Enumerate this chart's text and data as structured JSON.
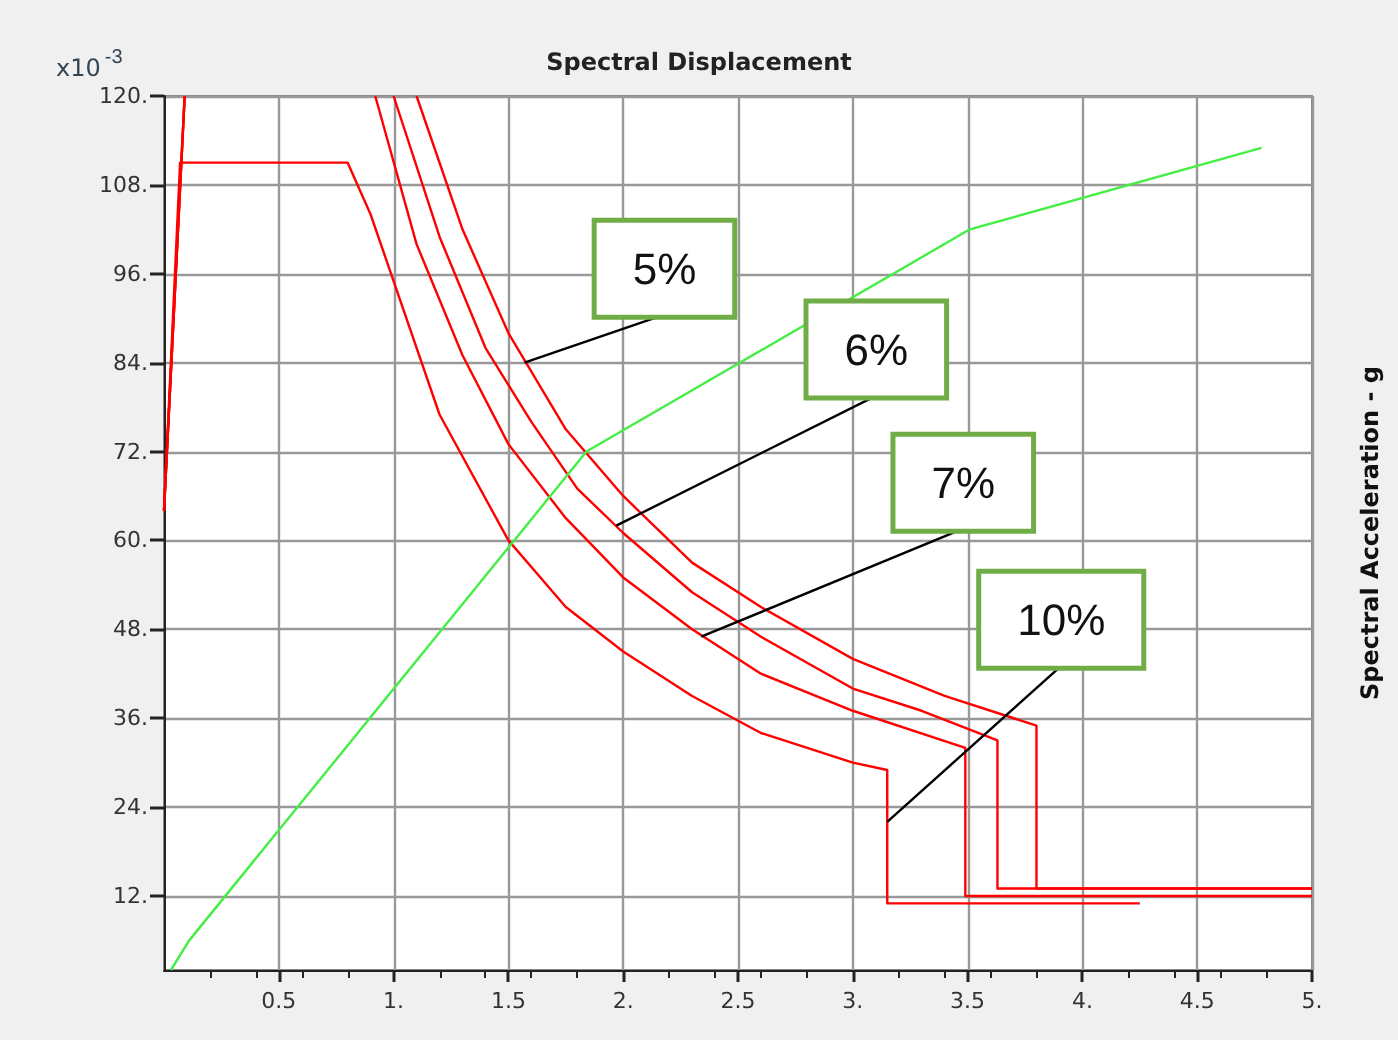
{
  "chart_data": {
    "type": "line",
    "title": "Spectral Displacement",
    "ylabel": "Spectral Acceleration - g",
    "xlim": [
      0,
      5
    ],
    "xticks": [
      0.5,
      {
        "value": 1,
        "label": "1."
      },
      1.5,
      {
        "value": 2,
        "label": "2."
      },
      2.5,
      {
        "value": 3,
        "label": "3."
      },
      3.5,
      {
        "value": 4,
        "label": "4."
      },
      4.5,
      {
        "value": 5,
        "label": "5."
      }
    ],
    "ylim": [
      2,
      120
    ],
    "yticks": [
      {
        "value": 12,
        "label": "12."
      },
      {
        "value": 24,
        "label": "24."
      },
      {
        "value": 36,
        "label": "36."
      },
      {
        "value": 48,
        "label": "48."
      },
      {
        "value": 60,
        "label": "60."
      },
      {
        "value": 72,
        "label": "72."
      },
      {
        "value": 84,
        "label": "84."
      },
      {
        "value": 96,
        "label": "96."
      },
      {
        "value": 108,
        "label": "108."
      },
      {
        "value": 120,
        "label": "120."
      }
    ],
    "grid": true,
    "marker": "none",
    "line_style": "solid",
    "series": [
      {
        "color": "#ff0000",
        "x": [
          0,
          0.09,
          null,
          1.1,
          1.3,
          1.5,
          1.75,
          2.0,
          2.3,
          2.6,
          3.0,
          3.4,
          3.8,
          3.8,
          5.0
        ],
        "values": [
          64,
          120,
          null,
          120,
          102,
          88,
          75,
          66,
          57,
          51,
          44,
          39,
          35,
          13,
          13
        ]
      },
      {
        "color": "#ff0000",
        "x": [
          0,
          0.09,
          null,
          1.0,
          1.2,
          1.4,
          1.6,
          1.8,
          2.0,
          2.3,
          2.6,
          3.0,
          3.3,
          3.63,
          3.63,
          5.0
        ],
        "values": [
          64,
          120,
          null,
          120,
          101,
          86,
          76,
          67,
          61,
          53,
          47,
          40,
          37,
          33,
          13,
          13
        ]
      },
      {
        "color": "#ff0000",
        "x": [
          0,
          0.09,
          null,
          0.92,
          1.1,
          1.3,
          1.5,
          1.75,
          2.0,
          2.3,
          2.6,
          3.0,
          3.49,
          3.49,
          5.0
        ],
        "values": [
          64,
          120,
          null,
          120,
          100,
          85,
          73,
          63,
          55,
          48,
          42,
          37,
          32,
          12,
          12
        ]
      },
      {
        "color": "#ff0000",
        "x": [
          0,
          0.07,
          0.8,
          0.9,
          1.0,
          1.2,
          1.5,
          1.75,
          2.0,
          2.3,
          2.6,
          3.0,
          3.15,
          3.15,
          4.25
        ],
        "values": [
          64,
          111,
          111,
          104,
          95,
          77,
          60,
          51,
          45,
          39,
          34,
          30,
          29,
          11,
          11
        ]
      },
      {
        "color": "#44ee44",
        "x": [
          0.03,
          0.11,
          1.84,
          3.51,
          4.78
        ],
        "values": [
          2,
          6,
          72,
          102,
          113
        ]
      }
    ],
    "annotations": [
      "x10$^{-3}$",
      {
        "text": "5%",
        "x": 1.57,
        "y": 84
      },
      {
        "text": "6%",
        "x": 1.97,
        "y": 62
      },
      {
        "text": "7%",
        "x": 2.34,
        "y": 47
      },
      {
        "text": "10%",
        "x": 3.15,
        "y": 22
      }
    ]
  }
}
